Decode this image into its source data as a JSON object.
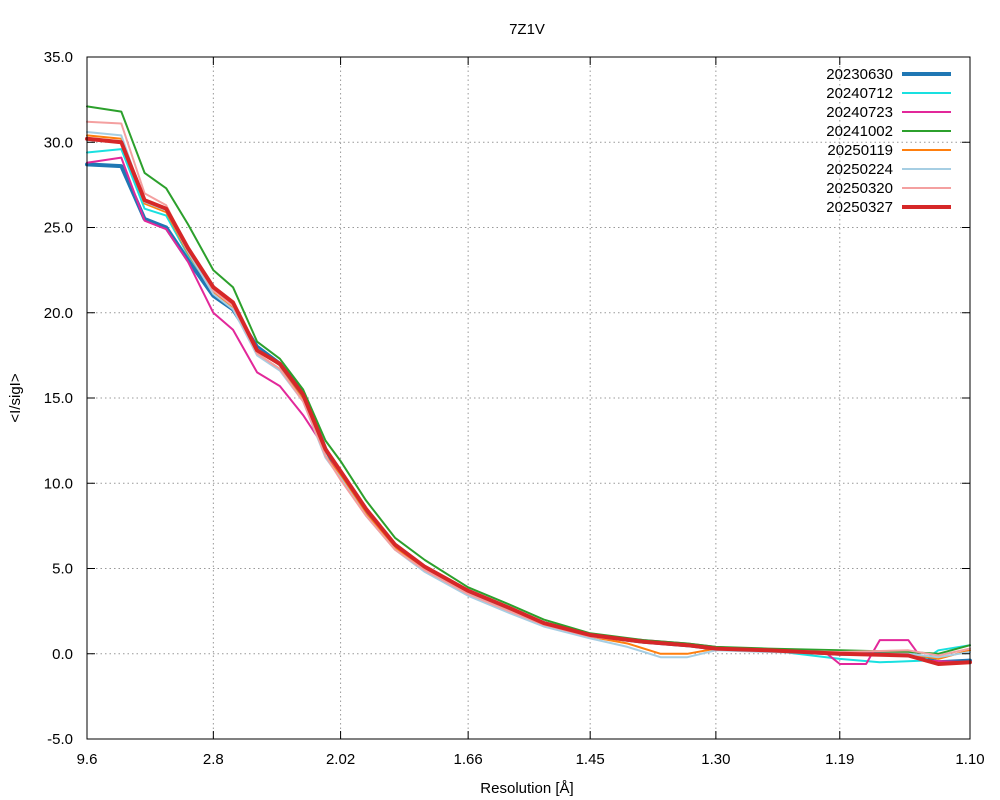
{
  "chart_data": {
    "type": "line",
    "title": "7Z1V",
    "xlabel": "Resolution [Å]",
    "ylabel": "<I/sigI>",
    "x_scale": "1/d^2",
    "xlim": [
      9.6,
      1.1
    ],
    "xticks": [
      "9.6",
      "2.8",
      "2.02",
      "1.66",
      "1.45",
      "1.30",
      "1.19",
      "1.10"
    ],
    "ylim": [
      -5.0,
      35.0
    ],
    "yticks": [
      "-5.0",
      "0.0",
      "5.0",
      "10.0",
      "15.0",
      "20.0",
      "25.0",
      "30.0",
      "35.0"
    ],
    "grid": true,
    "legend_position": "top-right",
    "series": [
      {
        "name": "20230630",
        "color": "#1f77b4",
        "width": 4,
        "points": [
          [
            9.6,
            28.7
          ],
          [
            4.85,
            28.6
          ],
          [
            3.95,
            25.5
          ],
          [
            3.45,
            25.0
          ],
          [
            3.1,
            23.1
          ],
          [
            2.8,
            21.0
          ],
          [
            2.62,
            20.2
          ],
          [
            2.44,
            18.0
          ],
          [
            2.3,
            17.0
          ],
          [
            2.18,
            15.3
          ],
          [
            2.08,
            12.0
          ],
          [
            2.02,
            10.5
          ],
          [
            1.93,
            8.4
          ],
          [
            1.84,
            6.3
          ],
          [
            1.76,
            5.0
          ],
          [
            1.66,
            3.6
          ],
          [
            1.58,
            2.6
          ],
          [
            1.52,
            1.8
          ],
          [
            1.45,
            1.1
          ],
          [
            1.38,
            0.7
          ],
          [
            1.33,
            0.5
          ],
          [
            1.3,
            0.3
          ],
          [
            1.25,
            0.2
          ],
          [
            1.19,
            0.0
          ],
          [
            1.14,
            0.0
          ],
          [
            1.12,
            -0.5
          ],
          [
            1.1,
            -0.4
          ]
        ]
      },
      {
        "name": "20240712",
        "color": "#19e0e0",
        "width": 2,
        "points": [
          [
            9.6,
            29.4
          ],
          [
            4.85,
            29.6
          ],
          [
            3.95,
            26.1
          ],
          [
            3.45,
            25.7
          ],
          [
            3.1,
            23.4
          ],
          [
            2.8,
            21.3
          ],
          [
            2.62,
            20.3
          ],
          [
            2.44,
            17.9
          ],
          [
            2.3,
            16.9
          ],
          [
            2.18,
            15.0
          ],
          [
            2.08,
            12.0
          ],
          [
            2.02,
            10.6
          ],
          [
            1.93,
            8.5
          ],
          [
            1.84,
            6.4
          ],
          [
            1.76,
            5.1
          ],
          [
            1.66,
            3.7
          ],
          [
            1.58,
            2.6
          ],
          [
            1.52,
            1.8
          ],
          [
            1.45,
            1.1
          ],
          [
            1.38,
            0.7
          ],
          [
            1.33,
            0.5
          ],
          [
            1.3,
            0.3
          ],
          [
            1.25,
            0.2
          ],
          [
            1.19,
            -0.3
          ],
          [
            1.16,
            -0.5
          ],
          [
            1.13,
            -0.4
          ],
          [
            1.12,
            0.2
          ],
          [
            1.1,
            0.5
          ]
        ]
      },
      {
        "name": "20240723",
        "color": "#e2289a",
        "width": 2,
        "points": [
          [
            9.6,
            28.8
          ],
          [
            4.85,
            29.1
          ],
          [
            3.95,
            25.4
          ],
          [
            3.45,
            24.9
          ],
          [
            3.1,
            23.0
          ],
          [
            2.8,
            20.0
          ],
          [
            2.62,
            19.0
          ],
          [
            2.44,
            16.5
          ],
          [
            2.3,
            15.7
          ],
          [
            2.18,
            14.0
          ],
          [
            2.08,
            12.0
          ],
          [
            2.02,
            10.4
          ],
          [
            1.93,
            8.2
          ],
          [
            1.84,
            6.2
          ],
          [
            1.76,
            5.0
          ],
          [
            1.66,
            3.5
          ],
          [
            1.58,
            2.5
          ],
          [
            1.52,
            1.8
          ],
          [
            1.45,
            1.1
          ],
          [
            1.38,
            0.8
          ],
          [
            1.33,
            0.6
          ],
          [
            1.3,
            0.4
          ],
          [
            1.25,
            0.2
          ],
          [
            1.2,
            0.0
          ],
          [
            1.19,
            -0.6
          ],
          [
            1.17,
            -0.6
          ],
          [
            1.16,
            0.8
          ],
          [
            1.14,
            0.8
          ],
          [
            1.13,
            -0.4
          ],
          [
            1.1,
            -0.5
          ]
        ]
      },
      {
        "name": "20241002",
        "color": "#2ca02c",
        "width": 2,
        "points": [
          [
            9.6,
            32.1
          ],
          [
            4.85,
            31.8
          ],
          [
            3.95,
            28.2
          ],
          [
            3.45,
            27.3
          ],
          [
            3.1,
            25.2
          ],
          [
            2.8,
            22.5
          ],
          [
            2.62,
            21.5
          ],
          [
            2.44,
            18.3
          ],
          [
            2.3,
            17.3
          ],
          [
            2.18,
            15.5
          ],
          [
            2.08,
            12.5
          ],
          [
            2.02,
            11.3
          ],
          [
            1.93,
            9.0
          ],
          [
            1.84,
            6.8
          ],
          [
            1.76,
            5.5
          ],
          [
            1.66,
            3.9
          ],
          [
            1.58,
            2.9
          ],
          [
            1.52,
            2.0
          ],
          [
            1.45,
            1.2
          ],
          [
            1.38,
            0.8
          ],
          [
            1.33,
            0.6
          ],
          [
            1.3,
            0.4
          ],
          [
            1.25,
            0.3
          ],
          [
            1.19,
            0.2
          ],
          [
            1.14,
            0.1
          ],
          [
            1.12,
            0.0
          ],
          [
            1.1,
            0.5
          ]
        ]
      },
      {
        "name": "20250119",
        "color": "#ff7f0e",
        "width": 2,
        "points": [
          [
            9.6,
            30.4
          ],
          [
            4.85,
            30.2
          ],
          [
            3.95,
            26.4
          ],
          [
            3.45,
            25.9
          ],
          [
            3.1,
            23.5
          ],
          [
            2.8,
            21.2
          ],
          [
            2.62,
            20.3
          ],
          [
            2.44,
            17.6
          ],
          [
            2.3,
            16.7
          ],
          [
            2.18,
            14.9
          ],
          [
            2.08,
            11.6
          ],
          [
            2.02,
            10.4
          ],
          [
            1.93,
            8.2
          ],
          [
            1.84,
            6.2
          ],
          [
            1.76,
            4.9
          ],
          [
            1.66,
            3.5
          ],
          [
            1.58,
            2.5
          ],
          [
            1.52,
            1.7
          ],
          [
            1.45,
            1.0
          ],
          [
            1.4,
            0.6
          ],
          [
            1.36,
            0.0
          ],
          [
            1.33,
            0.0
          ],
          [
            1.3,
            0.3
          ],
          [
            1.25,
            0.2
          ],
          [
            1.19,
            0.0
          ],
          [
            1.14,
            0.0
          ],
          [
            1.12,
            -0.3
          ],
          [
            1.1,
            0.2
          ]
        ]
      },
      {
        "name": "20250224",
        "color": "#a6cee3",
        "width": 2,
        "points": [
          [
            9.6,
            30.6
          ],
          [
            4.85,
            30.4
          ],
          [
            3.95,
            26.5
          ],
          [
            3.45,
            26.0
          ],
          [
            3.1,
            23.6
          ],
          [
            2.8,
            21.1
          ],
          [
            2.62,
            20.2
          ],
          [
            2.44,
            17.5
          ],
          [
            2.3,
            16.6
          ],
          [
            2.18,
            14.8
          ],
          [
            2.08,
            11.5
          ],
          [
            2.02,
            10.3
          ],
          [
            1.93,
            8.1
          ],
          [
            1.84,
            6.1
          ],
          [
            1.76,
            4.8
          ],
          [
            1.66,
            3.4
          ],
          [
            1.58,
            2.4
          ],
          [
            1.52,
            1.6
          ],
          [
            1.45,
            0.9
          ],
          [
            1.4,
            0.4
          ],
          [
            1.36,
            -0.2
          ],
          [
            1.33,
            -0.2
          ],
          [
            1.3,
            0.2
          ],
          [
            1.25,
            0.1
          ],
          [
            1.19,
            0.0
          ],
          [
            1.14,
            0.0
          ],
          [
            1.12,
            -0.2
          ],
          [
            1.1,
            0.1
          ]
        ]
      },
      {
        "name": "20250320",
        "color": "#f4a0a0",
        "width": 2,
        "points": [
          [
            9.6,
            31.2
          ],
          [
            4.85,
            31.1
          ],
          [
            3.95,
            27.0
          ],
          [
            3.45,
            26.3
          ],
          [
            3.1,
            23.8
          ],
          [
            2.8,
            21.3
          ],
          [
            2.62,
            20.4
          ],
          [
            2.44,
            17.6
          ],
          [
            2.3,
            16.7
          ],
          [
            2.18,
            14.8
          ],
          [
            2.08,
            11.6
          ],
          [
            2.02,
            10.2
          ],
          [
            1.93,
            8.1
          ],
          [
            1.84,
            6.1
          ],
          [
            1.76,
            4.9
          ],
          [
            1.66,
            3.5
          ],
          [
            1.58,
            2.5
          ],
          [
            1.52,
            1.7
          ],
          [
            1.45,
            1.0
          ],
          [
            1.38,
            0.7
          ],
          [
            1.33,
            0.5
          ],
          [
            1.3,
            0.3
          ],
          [
            1.25,
            0.2
          ],
          [
            1.19,
            0.1
          ],
          [
            1.14,
            0.2
          ],
          [
            1.12,
            -0.1
          ],
          [
            1.1,
            0.3
          ]
        ]
      },
      {
        "name": "20250327",
        "color": "#d62728",
        "width": 4,
        "points": [
          [
            9.6,
            30.2
          ],
          [
            4.85,
            30.0
          ],
          [
            3.95,
            26.6
          ],
          [
            3.45,
            26.1
          ],
          [
            3.1,
            23.8
          ],
          [
            2.8,
            21.5
          ],
          [
            2.62,
            20.6
          ],
          [
            2.44,
            17.8
          ],
          [
            2.3,
            17.0
          ],
          [
            2.18,
            15.2
          ],
          [
            2.08,
            12.0
          ],
          [
            2.02,
            10.7
          ],
          [
            1.93,
            8.5
          ],
          [
            1.84,
            6.4
          ],
          [
            1.76,
            5.1
          ],
          [
            1.66,
            3.7
          ],
          [
            1.58,
            2.7
          ],
          [
            1.52,
            1.8
          ],
          [
            1.45,
            1.1
          ],
          [
            1.38,
            0.7
          ],
          [
            1.33,
            0.5
          ],
          [
            1.3,
            0.3
          ],
          [
            1.25,
            0.2
          ],
          [
            1.19,
            0.0
          ],
          [
            1.14,
            -0.1
          ],
          [
            1.12,
            -0.6
          ],
          [
            1.1,
            -0.5
          ]
        ]
      }
    ]
  }
}
